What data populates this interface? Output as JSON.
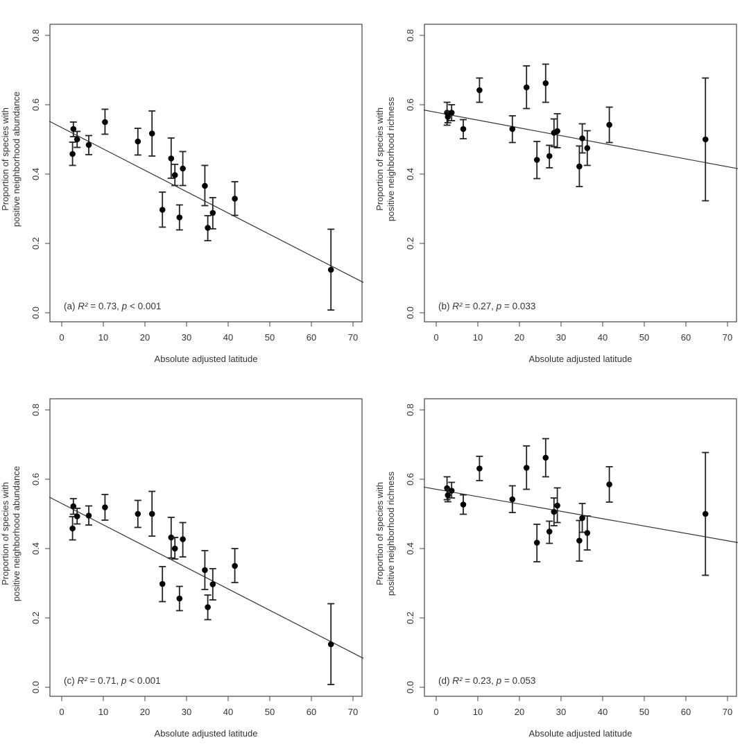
{
  "chart_data": [
    {
      "type": "scatter",
      "panel": "a",
      "annotation": {
        "prefix": "(a) ",
        "stat_symbol": "R²",
        "stat_value": " = 0.73, ",
        "p_symbol": "p",
        "p_value": " < 0.001"
      },
      "xlabel": "Absolute adjusted latitude",
      "ylabel": [
        "Proportion of species with",
        "positive neighborhood abundance"
      ],
      "xlim": [
        -3,
        72.5
      ],
      "ylim": [
        -0.025,
        0.835
      ],
      "xticks": [
        0,
        10,
        20,
        30,
        40,
        50,
        60,
        70
      ],
      "yticks": [
        0.0,
        0.2,
        0.4,
        0.6,
        0.8
      ],
      "ytick_labels": [
        "0.0",
        "0.2",
        "0.4",
        "0.6",
        "0.8"
      ],
      "grid": false,
      "points": [
        {
          "x": 2.6,
          "y": 0.458,
          "lo": 0.425,
          "hi": 0.492
        },
        {
          "x": 2.8,
          "y": 0.53,
          "lo": 0.508,
          "hi": 0.55
        },
        {
          "x": 3.7,
          "y": 0.5,
          "lo": 0.477,
          "hi": 0.523
        },
        {
          "x": 6.5,
          "y": 0.484,
          "lo": 0.456,
          "hi": 0.511
        },
        {
          "x": 10.4,
          "y": 0.55,
          "lo": 0.515,
          "hi": 0.587
        },
        {
          "x": 18.3,
          "y": 0.494,
          "lo": 0.455,
          "hi": 0.532
        },
        {
          "x": 21.7,
          "y": 0.517,
          "lo": 0.452,
          "hi": 0.582
        },
        {
          "x": 24.2,
          "y": 0.297,
          "lo": 0.247,
          "hi": 0.348
        },
        {
          "x": 26.3,
          "y": 0.445,
          "lo": 0.388,
          "hi": 0.504
        },
        {
          "x": 27.2,
          "y": 0.397,
          "lo": 0.367,
          "hi": 0.428
        },
        {
          "x": 28.3,
          "y": 0.275,
          "lo": 0.239,
          "hi": 0.311
        },
        {
          "x": 29.1,
          "y": 0.416,
          "lo": 0.367,
          "hi": 0.465
        },
        {
          "x": 34.4,
          "y": 0.366,
          "lo": 0.309,
          "hi": 0.425
        },
        {
          "x": 35.1,
          "y": 0.245,
          "lo": 0.208,
          "hi": 0.28
        },
        {
          "x": 36.3,
          "y": 0.288,
          "lo": 0.242,
          "hi": 0.332
        },
        {
          "x": 41.6,
          "y": 0.329,
          "lo": 0.281,
          "hi": 0.378
        },
        {
          "x": 64.7,
          "y": 0.124,
          "lo": 0.008,
          "hi": 0.241
        }
      ],
      "fit_line": {
        "intercept": 0.534,
        "slope": -0.00616
      }
    },
    {
      "type": "scatter",
      "panel": "b",
      "annotation": {
        "prefix": "(b) ",
        "stat_symbol": "R²",
        "stat_value": " = 0.27, ",
        "p_symbol": "p",
        "p_value": " = 0.033"
      },
      "xlabel": "Absolute adjusted latitude",
      "ylabel": [
        "Proportion of species with",
        "positive neighborhood richness"
      ],
      "xlim": [
        -3,
        72.5
      ],
      "ylim": [
        -0.025,
        0.835
      ],
      "xticks": [
        0,
        10,
        20,
        30,
        40,
        50,
        60,
        70
      ],
      "yticks": [
        0.0,
        0.2,
        0.4,
        0.6,
        0.8
      ],
      "ytick_labels": [
        "0.0",
        "0.2",
        "0.4",
        "0.6",
        "0.8"
      ],
      "grid": false,
      "points": [
        {
          "x": 2.6,
          "y": 0.577,
          "lo": 0.541,
          "hi": 0.607
        },
        {
          "x": 2.8,
          "y": 0.565,
          "lo": 0.548,
          "hi": 0.58
        },
        {
          "x": 3.7,
          "y": 0.577,
          "lo": 0.554,
          "hi": 0.6
        },
        {
          "x": 6.5,
          "y": 0.53,
          "lo": 0.502,
          "hi": 0.557
        },
        {
          "x": 10.4,
          "y": 0.642,
          "lo": 0.607,
          "hi": 0.677
        },
        {
          "x": 18.3,
          "y": 0.53,
          "lo": 0.491,
          "hi": 0.568
        },
        {
          "x": 21.7,
          "y": 0.65,
          "lo": 0.589,
          "hi": 0.712
        },
        {
          "x": 24.2,
          "y": 0.441,
          "lo": 0.387,
          "hi": 0.494
        },
        {
          "x": 26.3,
          "y": 0.662,
          "lo": 0.607,
          "hi": 0.717
        },
        {
          "x": 27.2,
          "y": 0.452,
          "lo": 0.418,
          "hi": 0.483
        },
        {
          "x": 28.3,
          "y": 0.519,
          "lo": 0.479,
          "hi": 0.559
        },
        {
          "x": 29.1,
          "y": 0.524,
          "lo": 0.476,
          "hi": 0.574
        },
        {
          "x": 34.4,
          "y": 0.422,
          "lo": 0.364,
          "hi": 0.481
        },
        {
          "x": 35.1,
          "y": 0.503,
          "lo": 0.461,
          "hi": 0.545
        },
        {
          "x": 36.3,
          "y": 0.475,
          "lo": 0.425,
          "hi": 0.525
        },
        {
          "x": 41.6,
          "y": 0.542,
          "lo": 0.491,
          "hi": 0.593
        },
        {
          "x": 64.7,
          "y": 0.5,
          "lo": 0.323,
          "hi": 0.677
        }
      ],
      "fit_line": {
        "intercept": 0.578,
        "slope": -0.00224
      }
    },
    {
      "type": "scatter",
      "panel": "c",
      "annotation": {
        "prefix": "(c) ",
        "stat_symbol": "R²",
        "stat_value": " = 0.71, ",
        "p_symbol": "p",
        "p_value": " < 0.001"
      },
      "xlabel": "Absolute adjusted latitude",
      "ylabel": [
        "Proportion of species with",
        "positive neighborhood abundance"
      ],
      "xlim": [
        -3,
        72.5
      ],
      "ylim": [
        -0.025,
        0.835
      ],
      "xticks": [
        0,
        10,
        20,
        30,
        40,
        50,
        60,
        70
      ],
      "yticks": [
        0.0,
        0.2,
        0.4,
        0.6,
        0.8
      ],
      "ytick_labels": [
        "0.0",
        "0.2",
        "0.4",
        "0.6",
        "0.8"
      ],
      "grid": false,
      "points": [
        {
          "x": 2.6,
          "y": 0.458,
          "lo": 0.425,
          "hi": 0.492
        },
        {
          "x": 2.8,
          "y": 0.522,
          "lo": 0.499,
          "hi": 0.544
        },
        {
          "x": 3.7,
          "y": 0.493,
          "lo": 0.471,
          "hi": 0.516
        },
        {
          "x": 6.5,
          "y": 0.495,
          "lo": 0.468,
          "hi": 0.523
        },
        {
          "x": 10.4,
          "y": 0.519,
          "lo": 0.482,
          "hi": 0.556
        },
        {
          "x": 18.3,
          "y": 0.5,
          "lo": 0.461,
          "hi": 0.539
        },
        {
          "x": 21.7,
          "y": 0.5,
          "lo": 0.436,
          "hi": 0.565
        },
        {
          "x": 24.2,
          "y": 0.298,
          "lo": 0.247,
          "hi": 0.348
        },
        {
          "x": 26.3,
          "y": 0.432,
          "lo": 0.373,
          "hi": 0.49
        },
        {
          "x": 27.2,
          "y": 0.4,
          "lo": 0.37,
          "hi": 0.432
        },
        {
          "x": 28.3,
          "y": 0.256,
          "lo": 0.221,
          "hi": 0.291
        },
        {
          "x": 29.1,
          "y": 0.427,
          "lo": 0.376,
          "hi": 0.475
        },
        {
          "x": 34.4,
          "y": 0.338,
          "lo": 0.282,
          "hi": 0.394
        },
        {
          "x": 35.1,
          "y": 0.231,
          "lo": 0.195,
          "hi": 0.266
        },
        {
          "x": 36.3,
          "y": 0.297,
          "lo": 0.252,
          "hi": 0.342
        },
        {
          "x": 41.6,
          "y": 0.35,
          "lo": 0.302,
          "hi": 0.4
        },
        {
          "x": 64.7,
          "y": 0.124,
          "lo": 0.008,
          "hi": 0.241
        }
      ],
      "fit_line": {
        "intercept": 0.53,
        "slope": -0.00616
      }
    },
    {
      "type": "scatter",
      "panel": "d",
      "annotation": {
        "prefix": "(d) ",
        "stat_symbol": "R²",
        "stat_value": " = 0.23, ",
        "p_symbol": "p",
        "p_value": " = 0.053"
      },
      "xlabel": "Absolute adjusted latitude",
      "ylabel": [
        "Proportion of species with",
        "positive neighborhood richness"
      ],
      "xlim": [
        -3,
        72.5
      ],
      "ylim": [
        -0.025,
        0.835
      ],
      "xticks": [
        0,
        10,
        20,
        30,
        40,
        50,
        60,
        70
      ],
      "yticks": [
        0.0,
        0.2,
        0.4,
        0.6,
        0.8
      ],
      "ytick_labels": [
        "0.0",
        "0.2",
        "0.4",
        "0.6",
        "0.8"
      ],
      "grid": false,
      "points": [
        {
          "x": 2.6,
          "y": 0.574,
          "lo": 0.541,
          "hi": 0.607
        },
        {
          "x": 2.8,
          "y": 0.554,
          "lo": 0.535,
          "hi": 0.572
        },
        {
          "x": 3.7,
          "y": 0.567,
          "lo": 0.546,
          "hi": 0.591
        },
        {
          "x": 6.5,
          "y": 0.527,
          "lo": 0.499,
          "hi": 0.555
        },
        {
          "x": 10.4,
          "y": 0.631,
          "lo": 0.596,
          "hi": 0.666
        },
        {
          "x": 18.3,
          "y": 0.542,
          "lo": 0.504,
          "hi": 0.581
        },
        {
          "x": 21.7,
          "y": 0.633,
          "lo": 0.571,
          "hi": 0.696
        },
        {
          "x": 24.2,
          "y": 0.417,
          "lo": 0.362,
          "hi": 0.47
        },
        {
          "x": 26.3,
          "y": 0.662,
          "lo": 0.607,
          "hi": 0.717
        },
        {
          "x": 27.2,
          "y": 0.449,
          "lo": 0.415,
          "hi": 0.479
        },
        {
          "x": 28.3,
          "y": 0.506,
          "lo": 0.466,
          "hi": 0.546
        },
        {
          "x": 29.1,
          "y": 0.524,
          "lo": 0.475,
          "hi": 0.575
        },
        {
          "x": 34.4,
          "y": 0.423,
          "lo": 0.364,
          "hi": 0.481
        },
        {
          "x": 35.1,
          "y": 0.488,
          "lo": 0.447,
          "hi": 0.53
        },
        {
          "x": 36.3,
          "y": 0.445,
          "lo": 0.396,
          "hi": 0.494
        },
        {
          "x": 41.6,
          "y": 0.585,
          "lo": 0.534,
          "hi": 0.636
        },
        {
          "x": 64.7,
          "y": 0.5,
          "lo": 0.323,
          "hi": 0.677
        }
      ],
      "fit_line": {
        "intercept": 0.571,
        "slope": -0.00212
      }
    }
  ]
}
